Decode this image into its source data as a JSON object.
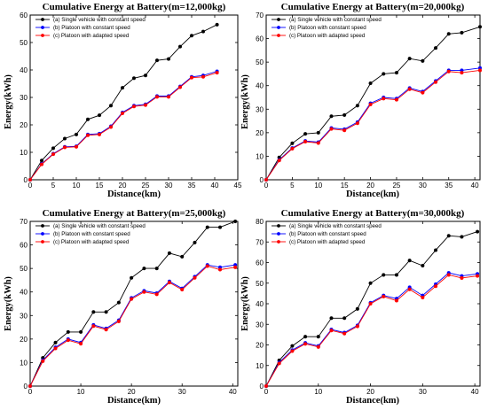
{
  "chart_data": [
    {
      "type": "line",
      "title": "Cumulative Energy at Battery(m=12,000kg)",
      "xlabel": "Distance(km)",
      "ylabel": "Energy(kWh)",
      "xlim": [
        0,
        45
      ],
      "ylim": [
        0,
        60
      ],
      "xticks": [
        0,
        5,
        10,
        15,
        20,
        25,
        30,
        35,
        40,
        45
      ],
      "yticks": [
        0,
        10,
        20,
        30,
        40,
        50,
        60
      ],
      "grid": false,
      "legend": "top-left",
      "x": [
        0,
        2.5,
        5,
        7.5,
        10,
        12.5,
        15,
        17.5,
        20,
        22.5,
        25,
        27.5,
        30,
        32.5,
        35,
        37.5,
        40.5
      ],
      "series": [
        {
          "name": "(a)    Single vehicle with constant speed",
          "color": "#000000",
          "values": [
            0,
            7,
            11.5,
            15,
            16.5,
            22,
            23.5,
            27,
            33.5,
            37,
            38,
            43.5,
            44,
            48.5,
            52.5,
            54,
            56.5
          ]
        },
        {
          "name": "(b)    Platoon with constant speed",
          "color": "#0000ff",
          "values": [
            0,
            5.8,
            9.5,
            12,
            12.2,
            16.5,
            16.8,
            19.5,
            24.5,
            27,
            27.5,
            30.5,
            30.5,
            34,
            37.5,
            38,
            39.5
          ]
        },
        {
          "name": "(c)    Platoon with adapted speed",
          "color": "#ff0000",
          "values": [
            0,
            5.6,
            9.3,
            11.8,
            12,
            16.2,
            16.5,
            19.2,
            24.2,
            26.7,
            27.2,
            30.2,
            30.2,
            33.7,
            37.2,
            37.5,
            39
          ]
        }
      ]
    },
    {
      "type": "line",
      "title": "Cumulative Energy at Battery(m=20,000kg)",
      "xlabel": "Distance(km)",
      "ylabel": "Energy(kWh)",
      "xlim": [
        0,
        41
      ],
      "ylim": [
        0,
        70
      ],
      "xticks": [
        0,
        5,
        10,
        15,
        20,
        25,
        30,
        35,
        40
      ],
      "yticks": [
        0,
        10,
        20,
        30,
        40,
        50,
        60,
        70
      ],
      "grid": false,
      "legend": "top-left",
      "x": [
        0,
        2.5,
        5,
        7.5,
        10,
        12.5,
        15,
        17.5,
        20,
        22.5,
        25,
        27.5,
        30,
        32.5,
        35,
        37.5,
        41
      ],
      "series": [
        {
          "name": "(a)    Single vehicle with constant speed",
          "color": "#000000",
          "values": [
            0,
            9.5,
            15.5,
            19.5,
            20,
            27,
            27.5,
            31.5,
            41,
            45,
            45.5,
            51.5,
            50.5,
            56,
            62,
            62.5,
            65
          ]
        },
        {
          "name": "(b)    Platoon with constant speed",
          "color": "#0000ff",
          "values": [
            0,
            8.5,
            13.5,
            16.5,
            16,
            22,
            21.5,
            24.5,
            32.5,
            35,
            34.5,
            39,
            37.5,
            42,
            46.5,
            46.5,
            47.5
          ]
        },
        {
          "name": "(c)    Platoon with adapted speed",
          "color": "#ff0000",
          "values": [
            0,
            8.2,
            13.2,
            16.2,
            15.6,
            21.6,
            21,
            24,
            32,
            34.5,
            34,
            38.5,
            37,
            41.5,
            46,
            45.5,
            46.5
          ]
        }
      ]
    },
    {
      "type": "line",
      "title": "Cumulative Energy at Battery(m=25,000kg)",
      "xlabel": "Distance(km)",
      "ylabel": "Energy(kWh)",
      "xlim": [
        0,
        41
      ],
      "ylim": [
        0,
        70
      ],
      "xticks": [
        0,
        10,
        20,
        30,
        40
      ],
      "yticks": [
        0,
        10,
        20,
        30,
        40,
        50,
        60,
        70
      ],
      "grid": false,
      "legend": "top-left",
      "x": [
        0,
        2.5,
        5,
        7.5,
        10,
        12.5,
        15,
        17.5,
        20,
        22.5,
        25,
        27.5,
        30,
        32.5,
        35,
        37.5,
        40.5
      ],
      "series": [
        {
          "name": "(a)    Single vehicle with constant speed",
          "color": "#000000",
          "values": [
            0,
            12,
            18.5,
            23,
            23,
            31.5,
            31.5,
            35.5,
            46,
            50,
            50,
            56.5,
            55,
            61,
            67.5,
            67.5,
            70
          ]
        },
        {
          "name": "(b)    Platoon with constant speed",
          "color": "#0000ff",
          "values": [
            0,
            11,
            16.5,
            20,
            18.5,
            26,
            24.5,
            28,
            37.5,
            40.5,
            39.5,
            44.5,
            41.5,
            46.5,
            51.5,
            50.5,
            51.5
          ]
        },
        {
          "name": "(c)    Platoon with adapted speed",
          "color": "#ff0000",
          "values": [
            0,
            10.6,
            16,
            19.5,
            18,
            25.5,
            24,
            27.5,
            37,
            40,
            39,
            44,
            41,
            46,
            51,
            49.5,
            50.5
          ]
        }
      ]
    },
    {
      "type": "line",
      "title": "Cumulative Energy at Battery(m=30,000kg)",
      "xlabel": "Distance(km)",
      "ylabel": "Energy(kWh)",
      "xlim": [
        0,
        41
      ],
      "ylim": [
        0,
        80
      ],
      "xticks": [
        0,
        10,
        20,
        30,
        40
      ],
      "yticks": [
        0,
        10,
        20,
        30,
        40,
        50,
        60,
        70,
        80
      ],
      "grid": false,
      "legend": "top-left",
      "x": [
        0,
        2.5,
        5,
        7.5,
        10,
        12.5,
        15,
        17.5,
        20,
        22.5,
        25,
        27.5,
        30,
        32.5,
        35,
        37.5,
        40.5
      ],
      "series": [
        {
          "name": "(a)    Single vehicle with constant speed",
          "color": "#000000",
          "values": [
            0,
            12.5,
            19.5,
            24,
            24,
            33,
            33,
            37.5,
            50,
            54,
            54,
            61,
            58.5,
            66,
            73,
            72.5,
            75
          ]
        },
        {
          "name": "(b)    Platoon with constant speed",
          "color": "#0000ff",
          "values": [
            0,
            11.5,
            17.5,
            21,
            19.5,
            27.5,
            26,
            29.5,
            40.5,
            44,
            42.5,
            48,
            44,
            49.5,
            55,
            53.5,
            54.5
          ]
        },
        {
          "name": "(c)    Platoon with adapted speed",
          "color": "#ff0000",
          "values": [
            0,
            11,
            17,
            20.5,
            19,
            27,
            25.5,
            29,
            40,
            43.5,
            41.5,
            47,
            43,
            48.5,
            54,
            52.5,
            53.5
          ]
        }
      ]
    }
  ]
}
